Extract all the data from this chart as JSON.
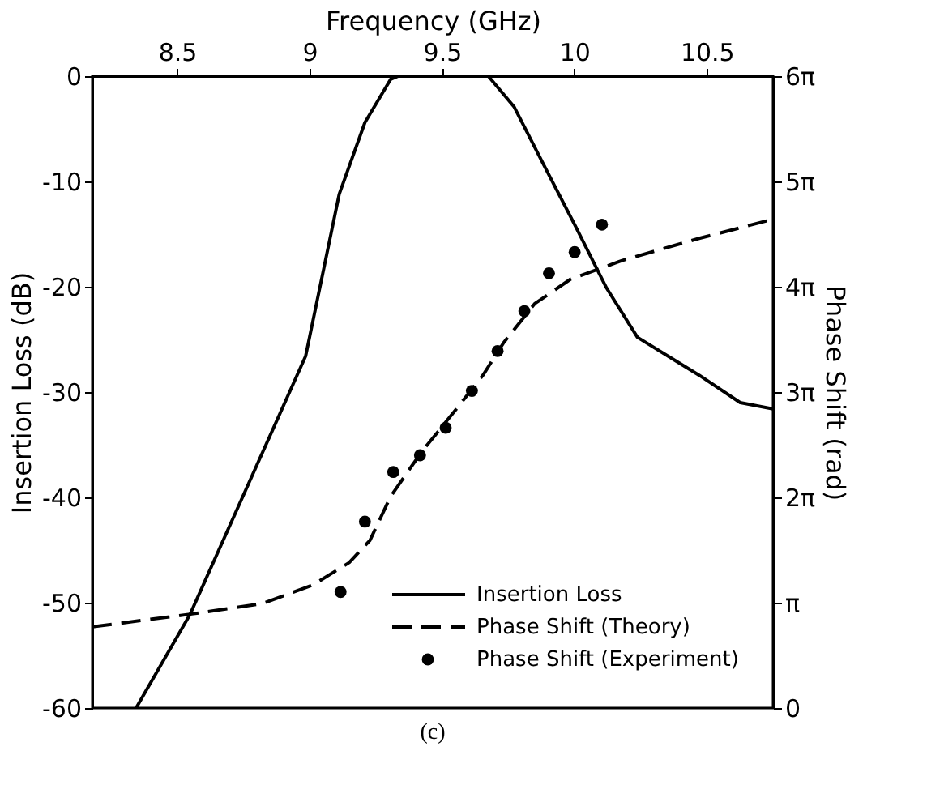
{
  "chart_data": {
    "type": "line",
    "xlabel": "Frequency (GHz)",
    "ylabel": "Insertion Loss (dB)",
    "y2label": "Phase Shift (rad)",
    "xlim": [
      8.18,
      10.75
    ],
    "xticks": [
      8.5,
      9,
      9.5,
      10,
      10.5
    ],
    "ylim": [
      -60,
      0
    ],
    "yticks": [
      0,
      -10,
      -20,
      -30,
      -40,
      -50,
      -60
    ],
    "y2lim": [
      0,
      18.8496
    ],
    "y2ticks": [
      0,
      {
        "value": 3.1416,
        "label": "π"
      },
      {
        "value": 6.2832,
        "label": "2π"
      },
      {
        "value": 9.4248,
        "label": "3π"
      },
      {
        "value": 12.5664,
        "label": "4π"
      },
      {
        "value": 15.708,
        "label": "5π"
      },
      {
        "value": 18.8496,
        "label": "6π"
      }
    ],
    "grid": false,
    "legend": "bottom right",
    "annotations": [
      "(c)"
    ],
    "series": [
      {
        "name": "Insertion Loss",
        "color": "#000000",
        "line_style": "solid",
        "x": [
          8.345,
          8.549,
          8.985,
          9.112,
          9.209,
          9.306,
          9.335,
          9.675,
          9.772,
          9.888,
          10.005,
          10.121,
          10.238,
          10.374,
          10.471,
          10.626,
          10.75
        ],
        "values": [
          -60,
          -51.1,
          -26.6,
          -11.2,
          -4.4,
          -0.3,
          0,
          0,
          -2.9,
          -8.6,
          -14.3,
          -20.1,
          -24.8,
          -26.9,
          -28.4,
          -31.0,
          -31.6
        ]
      },
      {
        "name": "Phase Shift (Theory)",
        "axis": "y2",
        "color": "#000000",
        "line_style": "dashed",
        "x": [
          8.18,
          8.549,
          8.82,
          9.015,
          9.15,
          9.228,
          9.306,
          9.422,
          9.539,
          9.655,
          9.733,
          9.85,
          9.985,
          10.18,
          10.471,
          10.75
        ],
        "values": [
          2.42,
          2.8,
          3.11,
          3.68,
          4.34,
          5.0,
          6.31,
          7.63,
          8.77,
          9.93,
          10.9,
          12.06,
          12.79,
          13.35,
          14.01,
          14.58
        ]
      },
      {
        "name": "Phase Shift (Experiment)",
        "type": "scatter",
        "axis": "y2",
        "color": "#000000",
        "marker": "circle",
        "x": [
          9.117,
          9.209,
          9.316,
          9.417,
          9.514,
          9.613,
          9.71,
          9.811,
          9.904,
          10.001,
          10.104
        ],
        "values": [
          3.46,
          5.56,
          7.04,
          7.54,
          8.36,
          9.46,
          10.65,
          11.84,
          12.97,
          13.6,
          14.42
        ]
      }
    ]
  }
}
